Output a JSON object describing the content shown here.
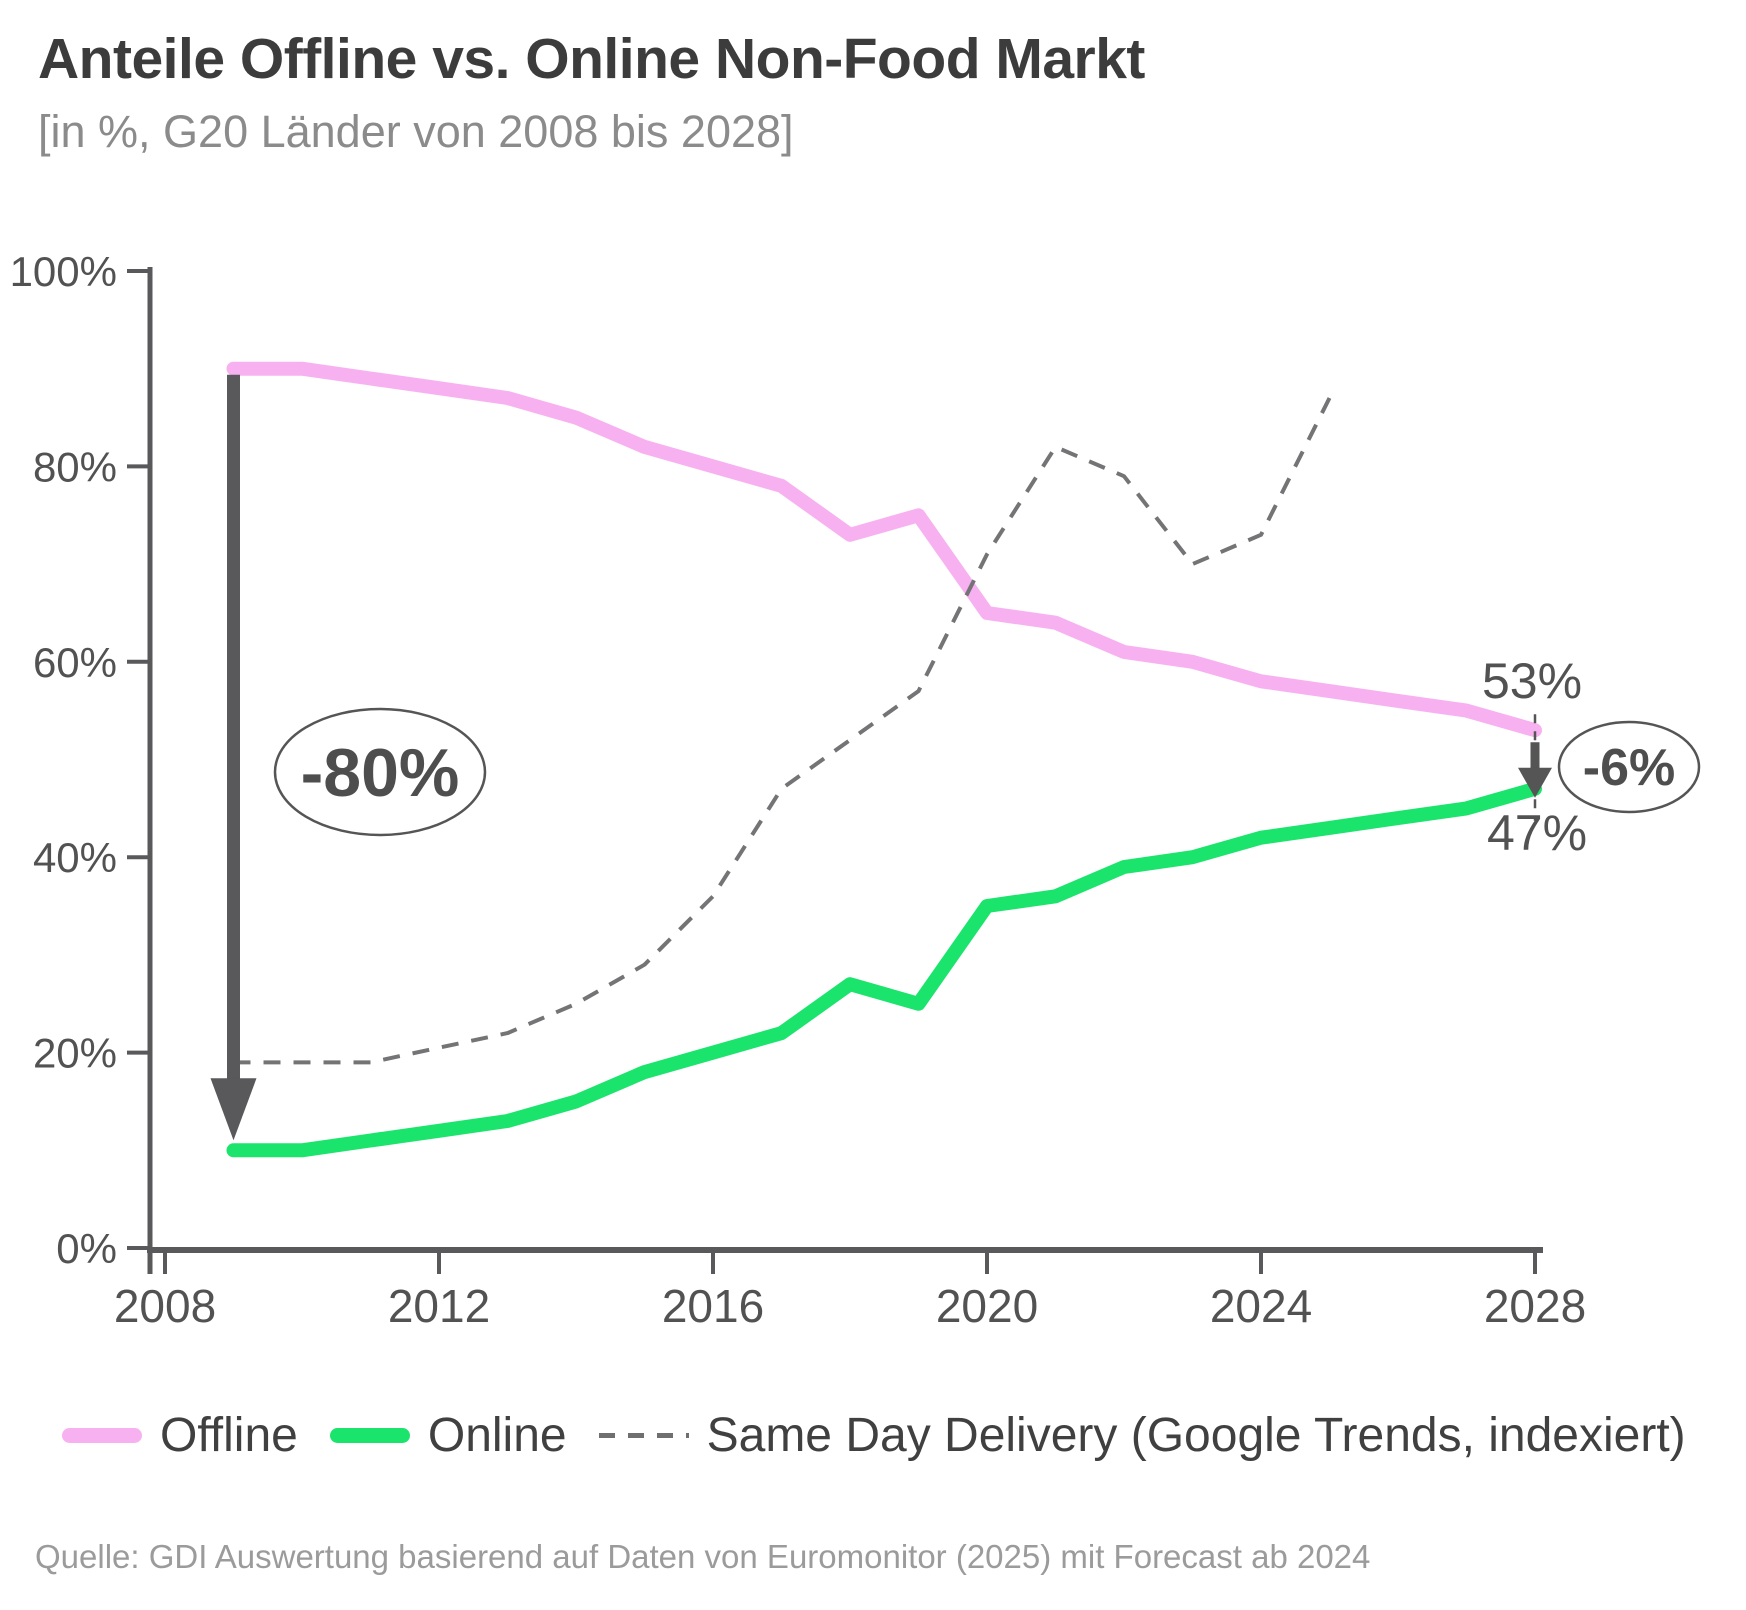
{
  "header": {
    "title": "Anteile Offline vs. Online Non-Food Markt",
    "subtitle": "[in %, G20 Länder von 2008 bis 2028]"
  },
  "chart_data": {
    "type": "line",
    "x": [
      2009,
      2010,
      2011,
      2012,
      2013,
      2014,
      2015,
      2016,
      2017,
      2018,
      2019,
      2020,
      2021,
      2022,
      2023,
      2024,
      2025,
      2026,
      2027,
      2028
    ],
    "series": [
      {
        "name": "Offline",
        "color": "#f8b1f0",
        "style": "solid",
        "values": [
          90,
          90,
          89,
          88,
          87,
          85,
          82,
          80,
          78,
          73,
          75,
          65,
          64,
          61,
          60,
          58,
          57,
          56,
          55,
          53
        ]
      },
      {
        "name": "Online",
        "color": "#1be46c",
        "style": "solid",
        "values": [
          10,
          10,
          11,
          12,
          13,
          15,
          18,
          20,
          22,
          27,
          25,
          35,
          36,
          39,
          40,
          42,
          43,
          44,
          45,
          47
        ]
      },
      {
        "name": "Same Day Delivery (Google Trends, indexiert)",
        "color": "#747476",
        "style": "dashed",
        "values": [
          19,
          19,
          19,
          20.5,
          22,
          25,
          29,
          36,
          47,
          52,
          57,
          71,
          82,
          79,
          70,
          73,
          87,
          null,
          null,
          null
        ]
      }
    ],
    "title": "Anteile Offline vs. Online Non-Food Markt",
    "xlabel": "",
    "ylabel": "",
    "xlim": [
      2008,
      2028
    ],
    "ylim": [
      0,
      100
    ],
    "grid": false,
    "legend_position": "bottom",
    "x_ticks": [
      2008,
      2012,
      2016,
      2020,
      2024,
      2028
    ],
    "y_ticks": [
      0,
      20,
      40,
      60,
      80,
      100
    ],
    "y_tick_suffix": "%",
    "annotations": {
      "big_drop": {
        "label": "-80%",
        "year": 2009,
        "from": 90,
        "to": 10
      },
      "end_drop": {
        "label": "-6%",
        "year": 2028,
        "from": 53,
        "to": 47
      },
      "offline_end_label": "53%",
      "online_end_label": "47%"
    }
  },
  "legend": {
    "items": [
      {
        "label": "Offline",
        "color": "#f8b1f0",
        "dashed": false
      },
      {
        "label": "Online",
        "color": "#1be46c",
        "dashed": false
      },
      {
        "label": "Same Day Delivery (Google Trends, indexiert)",
        "color": "#6f6f6f",
        "dashed": true
      }
    ]
  },
  "source": "Quelle: GDI Auswertung basierend auf Daten von Euromonitor (2025) mit Forecast ab 2024"
}
